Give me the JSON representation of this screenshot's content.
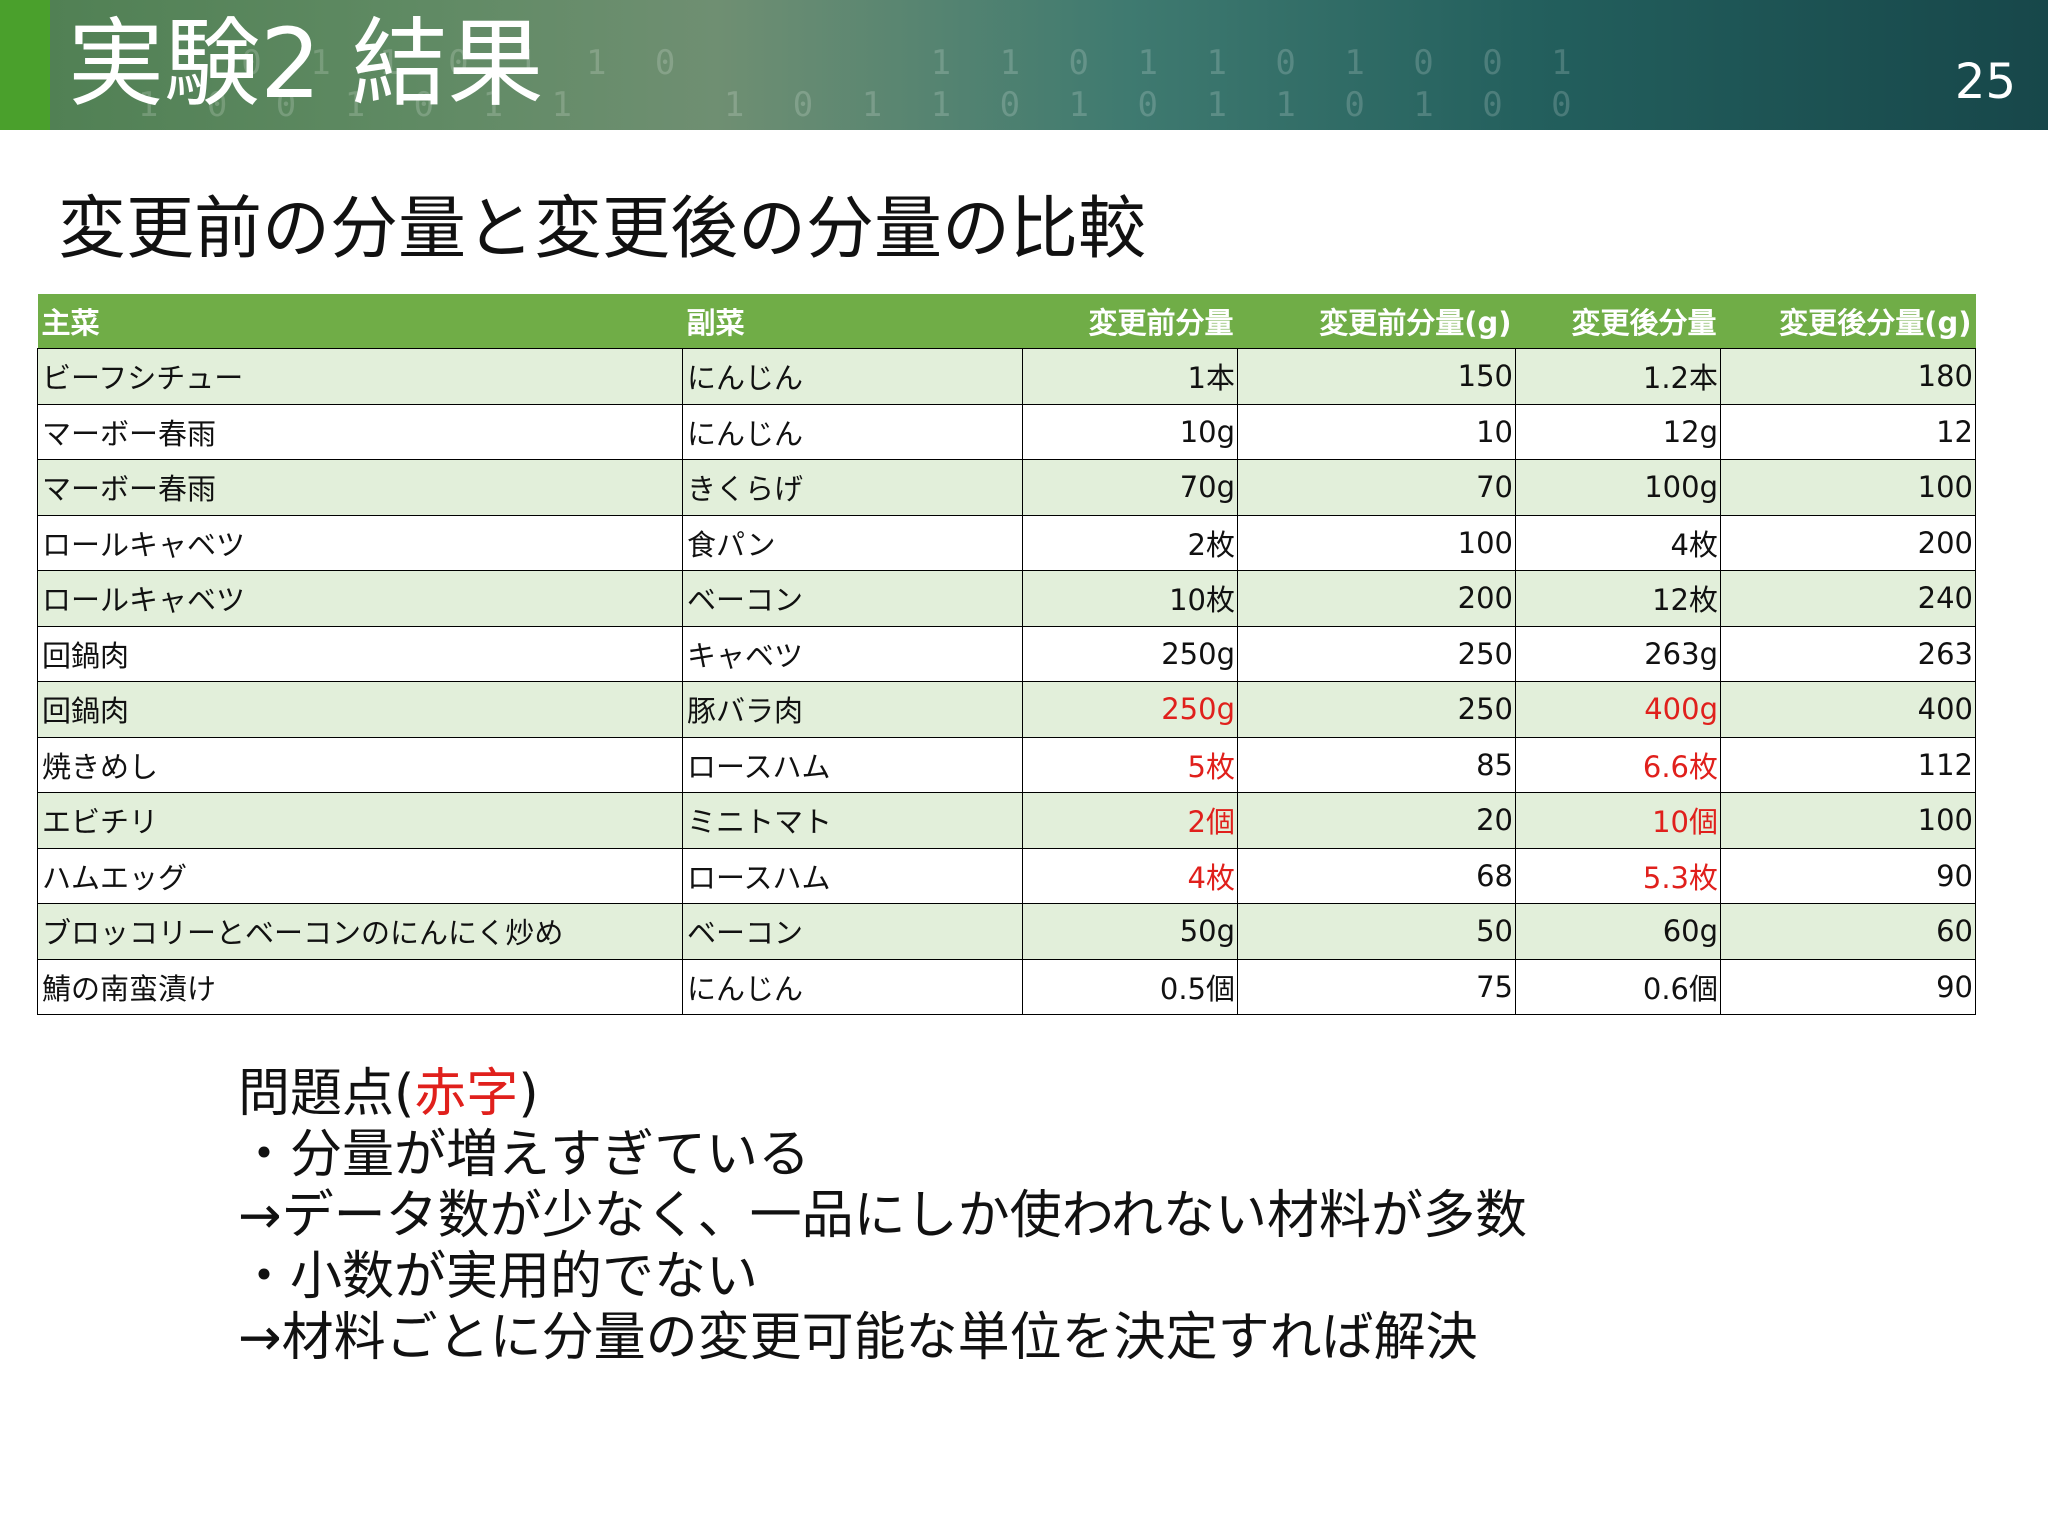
{
  "header": {
    "title": "実験2 結果",
    "page_number": "25"
  },
  "subtitle": "変更前の分量と変更後の分量の比較",
  "table": {
    "columns": [
      "主菜",
      "副菜",
      "変更前分量",
      "変更前分量(g)",
      "変更後分量",
      "変更後分量(g)"
    ],
    "rows": [
      {
        "main": "ビーフシチュー",
        "side": "にんじん",
        "before": "1本",
        "before_g": "150",
        "after": "1.2本",
        "after_g": "180",
        "flag": false
      },
      {
        "main": "マーボー春雨",
        "side": "にんじん",
        "before": "10g",
        "before_g": "10",
        "after": "12g",
        "after_g": "12",
        "flag": false
      },
      {
        "main": "マーボー春雨",
        "side": "きくらげ",
        "before": "70g",
        "before_g": "70",
        "after": "100g",
        "after_g": "100",
        "flag": false
      },
      {
        "main": "ロールキャベツ",
        "side": "食パン",
        "before": "2枚",
        "before_g": "100",
        "after": "4枚",
        "after_g": "200",
        "flag": false
      },
      {
        "main": "ロールキャベツ",
        "side": "ベーコン",
        "before": "10枚",
        "before_g": "200",
        "after": "12枚",
        "after_g": "240",
        "flag": false
      },
      {
        "main": "回鍋肉",
        "side": "キャベツ",
        "before": "250g",
        "before_g": "250",
        "after": "263g",
        "after_g": "263",
        "flag": false
      },
      {
        "main": "回鍋肉",
        "side": "豚バラ肉",
        "before": "250g",
        "before_g": "250",
        "after": "400g",
        "after_g": "400",
        "flag": true
      },
      {
        "main": "焼きめし",
        "side": "ロースハム",
        "before": "5枚",
        "before_g": "85",
        "after": "6.6枚",
        "after_g": "112",
        "flag": true
      },
      {
        "main": "エビチリ",
        "side": "ミニトマト",
        "before": "2個",
        "before_g": "20",
        "after": "10個",
        "after_g": "100",
        "flag": true
      },
      {
        "main": "ハムエッグ",
        "side": "ロースハム",
        "before": "4枚",
        "before_g": "68",
        "after": "5.3枚",
        "after_g": "90",
        "flag": true
      },
      {
        "main": "ブロッコリーとベーコンのにんにく炒め",
        "side": "ベーコン",
        "before": "50g",
        "before_g": "50",
        "after": "60g",
        "after_g": "60",
        "flag": false
      },
      {
        "main": "鯖の南蛮漬け",
        "side": "にんじん",
        "before": "0.5個",
        "before_g": "75",
        "after": "0.6個",
        "after_g": "90",
        "flag": false
      }
    ]
  },
  "notes": {
    "heading_prefix": "問題点(",
    "heading_red": "赤字",
    "heading_suffix": ")",
    "lines": [
      "・分量が増えすぎている",
      "→データ数が少なく、一品にしか使われない材料が多数",
      "・小数が実用的でない",
      "→材料ごとに分量の変更可能な単位を決定すれば解決"
    ]
  },
  "colors": {
    "header_green": "#70ad47",
    "row_alt": "#e2efda",
    "flag_red": "#e0201c",
    "banner_accent": "#4aa02c"
  }
}
